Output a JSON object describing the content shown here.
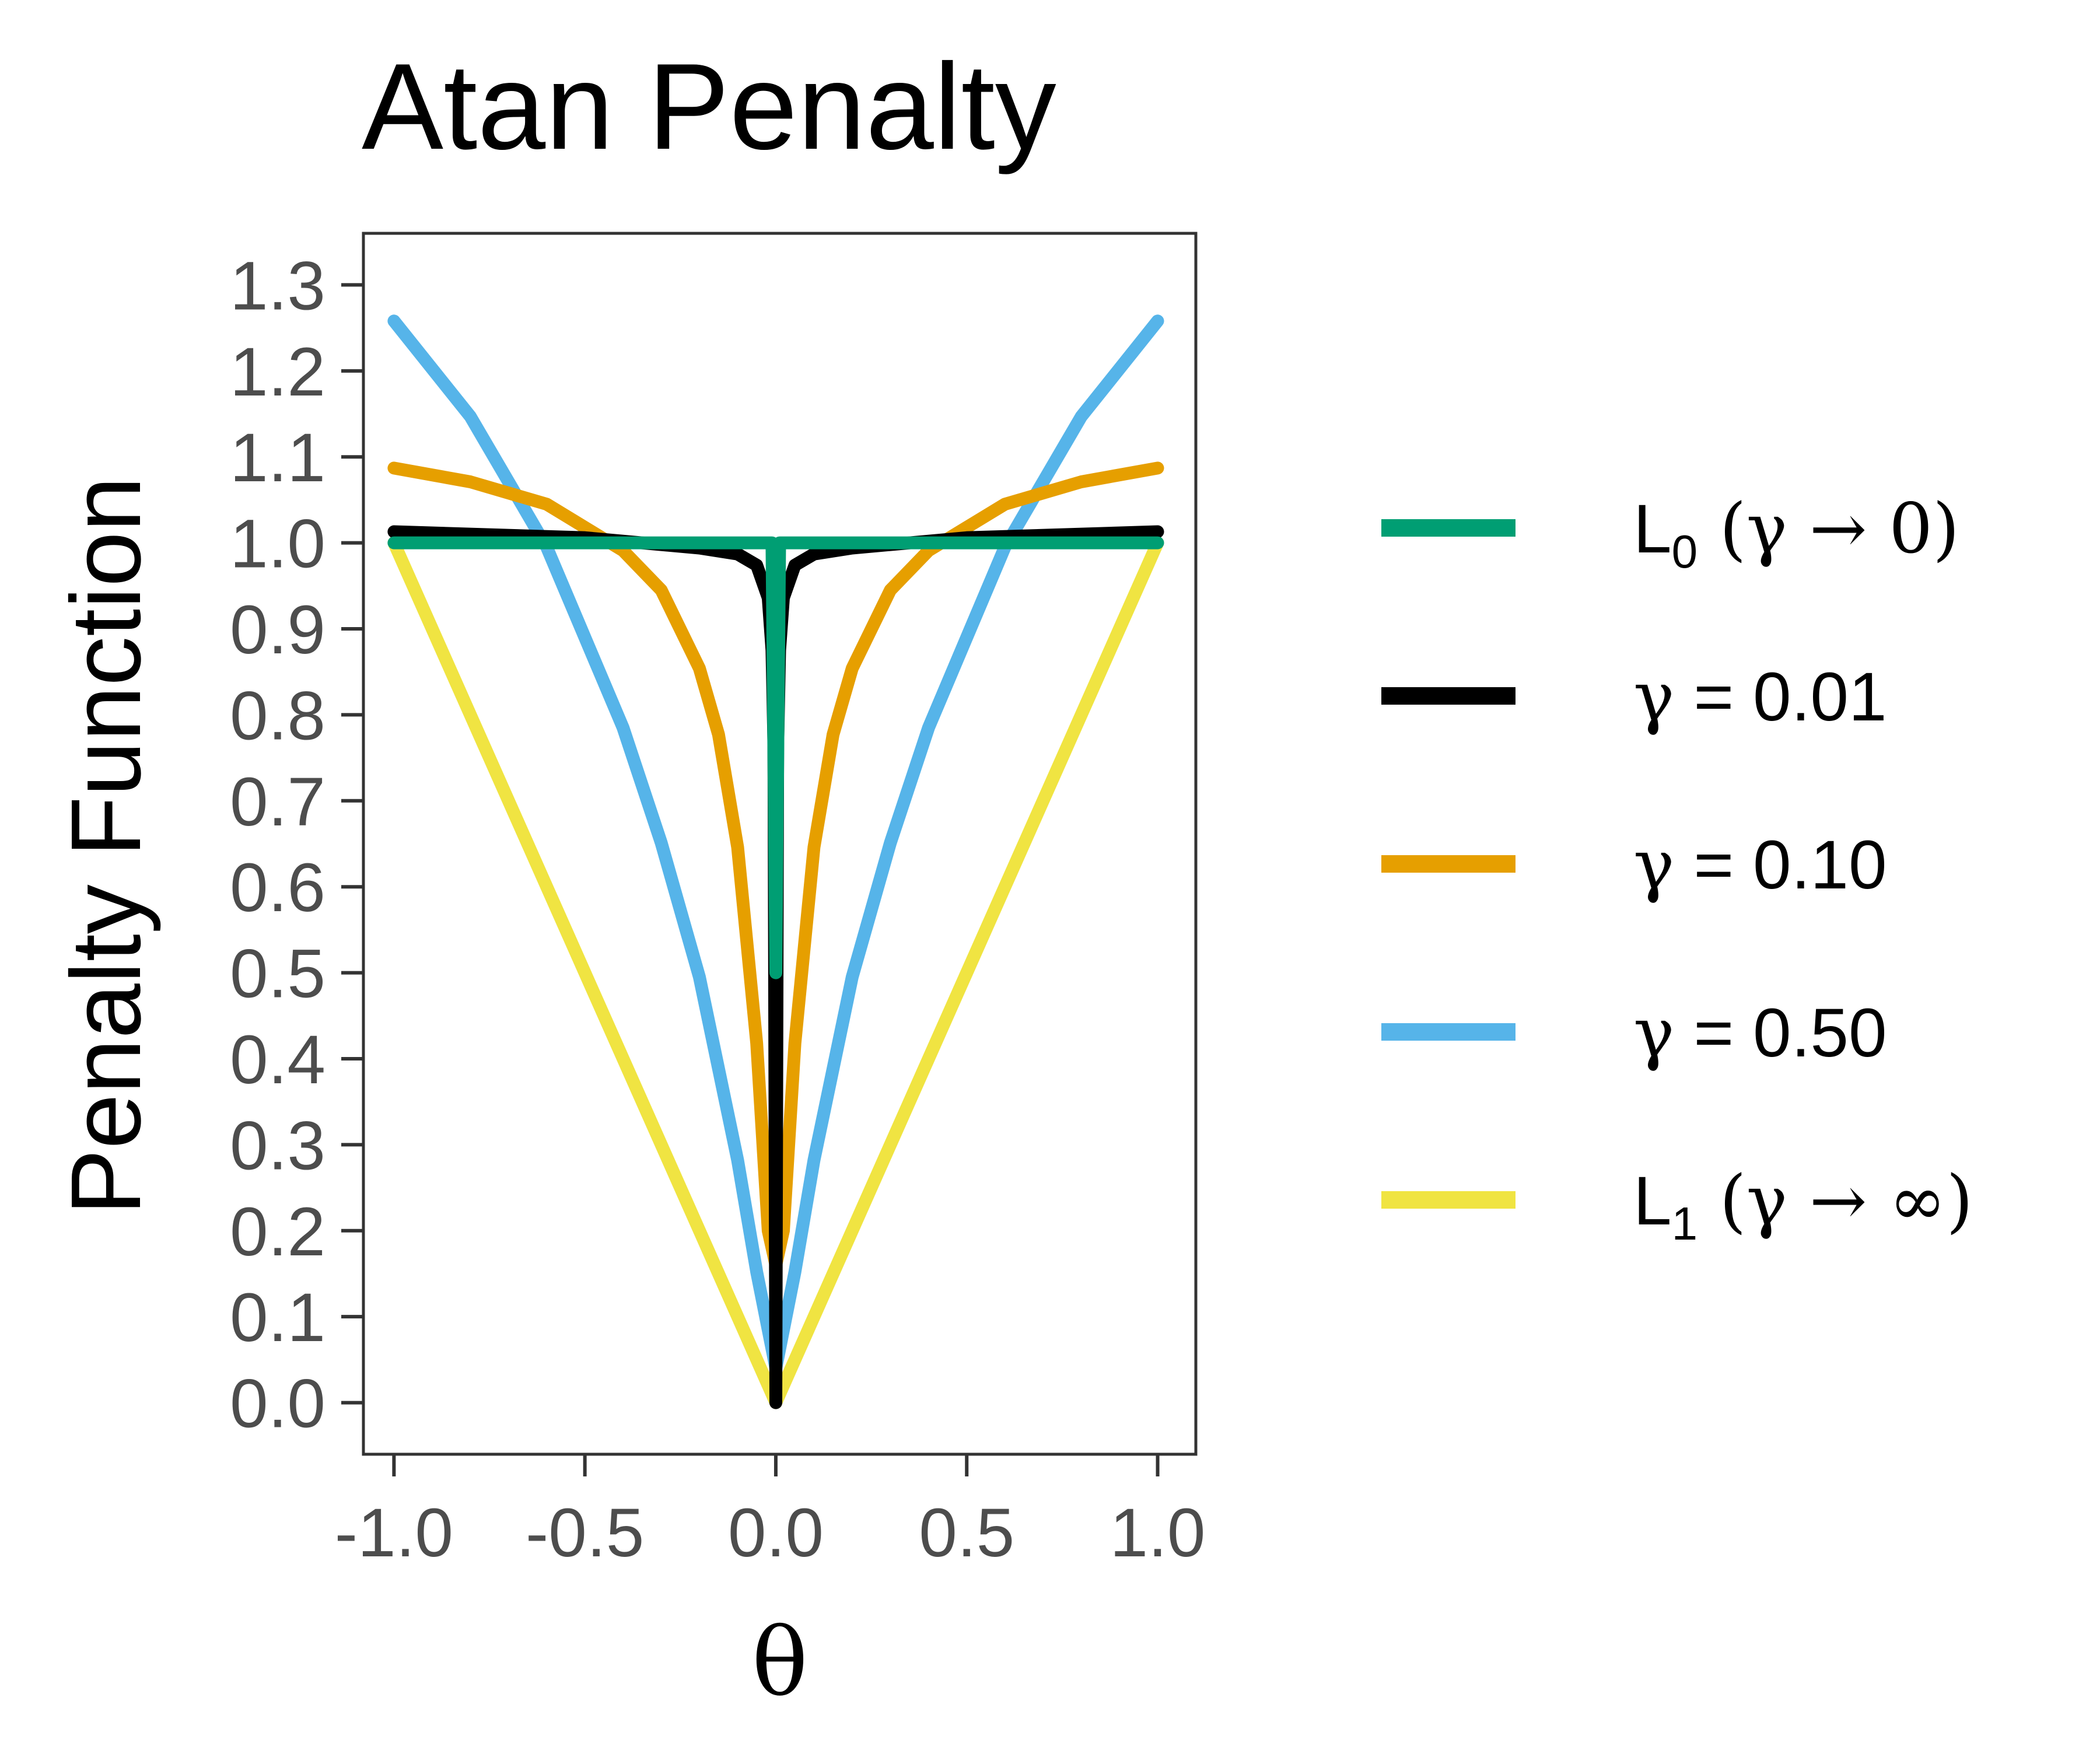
{
  "chart_data": {
    "type": "line",
    "title": "Atan Penalty",
    "xlabel": "θ",
    "ylabel": "Penalty Function",
    "xlim": [
      -1.08,
      1.1
    ],
    "ylim": [
      -0.06,
      1.36
    ],
    "x_ticks": [
      -1.0,
      -0.5,
      0.0,
      0.5,
      1.0
    ],
    "x_tick_labels": [
      "-1.0",
      "-0.5",
      "0.0",
      "0.5",
      "1.0"
    ],
    "y_ticks": [
      0.0,
      0.1,
      0.2,
      0.3,
      0.4,
      0.5,
      0.6,
      0.7,
      0.8,
      0.9,
      1.0,
      1.1,
      1.2,
      1.3
    ],
    "y_tick_labels": [
      "0.0",
      "0.1",
      "0.2",
      "0.3",
      "0.4",
      "0.5",
      "0.6",
      "0.7",
      "0.8",
      "0.9",
      "1.0",
      "1.1",
      "1.2",
      "1.3"
    ],
    "grid": false,
    "legend_position": "right",
    "series": [
      {
        "name": "L0 (γ → 0)",
        "color": "#009E73",
        "x": [
          -1.0,
          -0.5,
          -0.1,
          -0.05,
          -0.01,
          0.0,
          0.01,
          0.05,
          0.1,
          0.5,
          1.0
        ],
        "y": [
          1.0,
          1.0,
          1.0,
          1.0,
          1.0,
          0.5,
          1.0,
          1.0,
          1.0,
          1.0,
          1.0
        ]
      },
      {
        "name": "γ = 0.01",
        "color": "#000000",
        "x": [
          -1.0,
          -0.5,
          -0.2,
          -0.1,
          -0.05,
          -0.02,
          -0.01,
          -0.005,
          0.0,
          0.005,
          0.01,
          0.02,
          0.05,
          0.1,
          0.2,
          0.5,
          1.0
        ],
        "y": [
          1.013,
          1.006,
          0.994,
          0.987,
          0.974,
          0.936,
          0.875,
          0.764,
          0.0,
          0.764,
          0.875,
          0.936,
          0.974,
          0.987,
          0.994,
          1.006,
          1.013
        ],
        "y_at_0_visible_min": 0.2
      },
      {
        "name": "γ = 0.10",
        "color": "#E69F00",
        "x": [
          -1.0,
          -0.8,
          -0.6,
          -0.4,
          -0.3,
          -0.2,
          -0.15,
          -0.1,
          -0.05,
          -0.02,
          0.0,
          0.02,
          0.05,
          0.1,
          0.15,
          0.2,
          0.3,
          0.4,
          0.6,
          0.8,
          1.0
        ],
        "y": [
          1.087,
          1.071,
          1.045,
          0.991,
          0.945,
          0.854,
          0.777,
          0.646,
          0.418,
          0.2,
          0.16,
          0.2,
          0.418,
          0.646,
          0.777,
          0.854,
          0.945,
          0.991,
          1.045,
          1.071,
          1.087
        ]
      },
      {
        "name": "γ = 0.50",
        "color": "#56B4E9",
        "x": [
          -1.0,
          -0.8,
          -0.6,
          -0.4,
          -0.3,
          -0.2,
          -0.1,
          -0.05,
          0.0,
          0.05,
          0.1,
          0.2,
          0.3,
          0.4,
          0.6,
          0.8,
          1.0
        ],
        "y": [
          1.258,
          1.147,
          0.995,
          0.785,
          0.651,
          0.495,
          0.282,
          0.152,
          0.04,
          0.152,
          0.282,
          0.495,
          0.651,
          0.785,
          0.995,
          1.147,
          1.258
        ]
      },
      {
        "name": "L1 (γ → ∞)",
        "color": "#F0E442",
        "x": [
          -1.0,
          -0.5,
          0.0,
          0.5,
          1.0
        ],
        "y": [
          1.0,
          0.5,
          0.0,
          0.5,
          1.0
        ]
      }
    ]
  },
  "legend": [
    {
      "prefix": "L",
      "sub": "0",
      "greek": "(γ → 0)",
      "text": "",
      "color": "#009E73"
    },
    {
      "prefix": "",
      "sub": "",
      "greek": "γ",
      "text": "  = 0.01",
      "color": "#000000"
    },
    {
      "prefix": "",
      "sub": "",
      "greek": "γ",
      "text": "  = 0.10",
      "color": "#E69F00"
    },
    {
      "prefix": "",
      "sub": "",
      "greek": "γ",
      "text": "  = 0.50",
      "color": "#56B4E9"
    },
    {
      "prefix": "L",
      "sub": "1",
      "greek": "(γ → ∞)",
      "text": "",
      "color": "#F0E442"
    }
  ]
}
